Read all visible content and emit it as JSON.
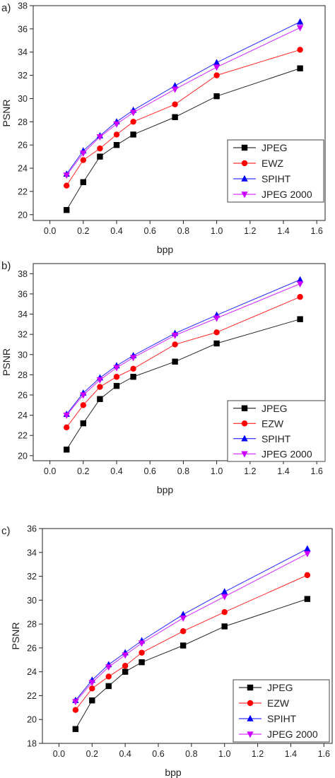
{
  "chart_data": [
    {
      "type": "line",
      "panel_label": "a)",
      "xlabel": "bpp",
      "ylabel": "PSNR",
      "xlim": [
        -0.1,
        1.65
      ],
      "ylim": [
        19.5,
        38
      ],
      "xticks": [
        0.0,
        0.2,
        0.4,
        0.6,
        0.8,
        1.0,
        1.2,
        1.4,
        1.6
      ],
      "xtick_labels": [
        "0.0",
        "0.2",
        "0.4",
        "0.6",
        "0.8",
        "1.0",
        "1.2",
        "1.4",
        "1.6"
      ],
      "yticks": [
        20,
        22,
        24,
        26,
        28,
        30,
        32,
        34,
        36,
        38
      ],
      "ytick_labels": [
        "20",
        "22",
        "24",
        "26",
        "28",
        "30",
        "32",
        "34",
        "36",
        "38"
      ],
      "legend_position": "bottom-right",
      "x": [
        0.1,
        0.2,
        0.3,
        0.4,
        0.5,
        0.75,
        1.0,
        1.5
      ],
      "series": [
        {
          "name": "JPEG",
          "color": "#000000",
          "marker": "square",
          "values": [
            20.4,
            22.8,
            25.0,
            26.0,
            26.9,
            28.4,
            30.2,
            32.6
          ]
        },
        {
          "name": "EWZ",
          "color": "#ff0000",
          "marker": "circle",
          "values": [
            22.5,
            24.7,
            25.7,
            26.9,
            28.0,
            29.5,
            32.0,
            34.2
          ]
        },
        {
          "name": "SPIHT",
          "color": "#0000ff",
          "marker": "triangle-up",
          "values": [
            23.5,
            25.5,
            26.8,
            28.0,
            29.0,
            31.1,
            33.1,
            36.6
          ]
        },
        {
          "name": "JPEG 2000",
          "color": "#cc00ff",
          "marker": "triangle-down",
          "values": [
            23.4,
            25.3,
            26.7,
            27.8,
            28.8,
            30.8,
            32.7,
            36.1
          ]
        }
      ]
    },
    {
      "type": "line",
      "panel_label": "b)",
      "xlabel": "bpp",
      "ylabel": "PSNR",
      "xlim": [
        -0.1,
        1.65
      ],
      "ylim": [
        19.5,
        39
      ],
      "xticks": [
        0.0,
        0.2,
        0.4,
        0.6,
        0.8,
        1.0,
        1.2,
        1.4,
        1.6
      ],
      "xtick_labels": [
        "0.0",
        "0.2",
        "0.4",
        "0.6",
        "0.8",
        "1.0",
        "1.2",
        "1.4",
        "1.6"
      ],
      "yticks": [
        20,
        22,
        24,
        26,
        28,
        30,
        32,
        34,
        36,
        38
      ],
      "ytick_labels": [
        "20",
        "22",
        "24",
        "26",
        "28",
        "30",
        "32",
        "34",
        "36",
        "38"
      ],
      "legend_position": "bottom-right",
      "x": [
        0.1,
        0.2,
        0.3,
        0.4,
        0.5,
        0.75,
        1.0,
        1.5
      ],
      "series": [
        {
          "name": "JPEG",
          "color": "#000000",
          "marker": "square",
          "values": [
            20.6,
            23.2,
            25.6,
            26.9,
            27.8,
            29.3,
            31.1,
            33.5
          ]
        },
        {
          "name": "EZW",
          "color": "#ff0000",
          "marker": "circle",
          "values": [
            22.8,
            25.0,
            26.8,
            27.8,
            28.6,
            31.0,
            32.2,
            35.7
          ]
        },
        {
          "name": "SPIHT",
          "color": "#0000ff",
          "marker": "triangle-up",
          "values": [
            24.1,
            26.2,
            27.7,
            28.9,
            29.9,
            32.1,
            33.9,
            37.4
          ]
        },
        {
          "name": "JPEG 2000",
          "color": "#cc00ff",
          "marker": "triangle-down",
          "values": [
            24.0,
            26.0,
            27.5,
            28.7,
            29.7,
            31.9,
            33.6,
            37.0
          ]
        }
      ]
    },
    {
      "type": "line",
      "panel_label": "c)",
      "xlabel": "bpp",
      "ylabel": "PSNR",
      "xlim": [
        -0.1,
        1.65
      ],
      "ylim": [
        18,
        36
      ],
      "xticks": [
        0.0,
        0.2,
        0.4,
        0.6,
        0.8,
        1.0,
        1.2,
        1.4,
        1.6
      ],
      "xtick_labels": [
        "0.0",
        "0.2",
        "0.4",
        "0.6",
        "0.8",
        "1.0",
        "1.2",
        "1.4",
        "1.6"
      ],
      "yticks": [
        18,
        20,
        22,
        24,
        26,
        28,
        30,
        32,
        34,
        36
      ],
      "ytick_labels": [
        "18",
        "20",
        "22",
        "24",
        "26",
        "28",
        "30",
        "32",
        "34",
        "36"
      ],
      "legend_position": "bottom-right",
      "x": [
        0.1,
        0.2,
        0.3,
        0.4,
        0.5,
        0.75,
        1.0,
        1.5
      ],
      "series": [
        {
          "name": "JPEG",
          "color": "#000000",
          "marker": "square",
          "values": [
            19.2,
            21.6,
            22.8,
            24.0,
            24.8,
            26.2,
            27.8,
            30.1
          ]
        },
        {
          "name": "EZW",
          "color": "#ff0000",
          "marker": "circle",
          "values": [
            20.8,
            22.6,
            23.6,
            24.5,
            25.6,
            27.4,
            29.0,
            32.1
          ]
        },
        {
          "name": "SPIHT",
          "color": "#0000ff",
          "marker": "triangle-up",
          "values": [
            21.6,
            23.3,
            24.6,
            25.6,
            26.6,
            28.8,
            30.7,
            34.3
          ]
        },
        {
          "name": "JPEG 2000",
          "color": "#cc00ff",
          "marker": "triangle-down",
          "values": [
            21.5,
            23.1,
            24.4,
            25.4,
            26.4,
            28.5,
            30.3,
            33.9
          ]
        }
      ]
    }
  ]
}
